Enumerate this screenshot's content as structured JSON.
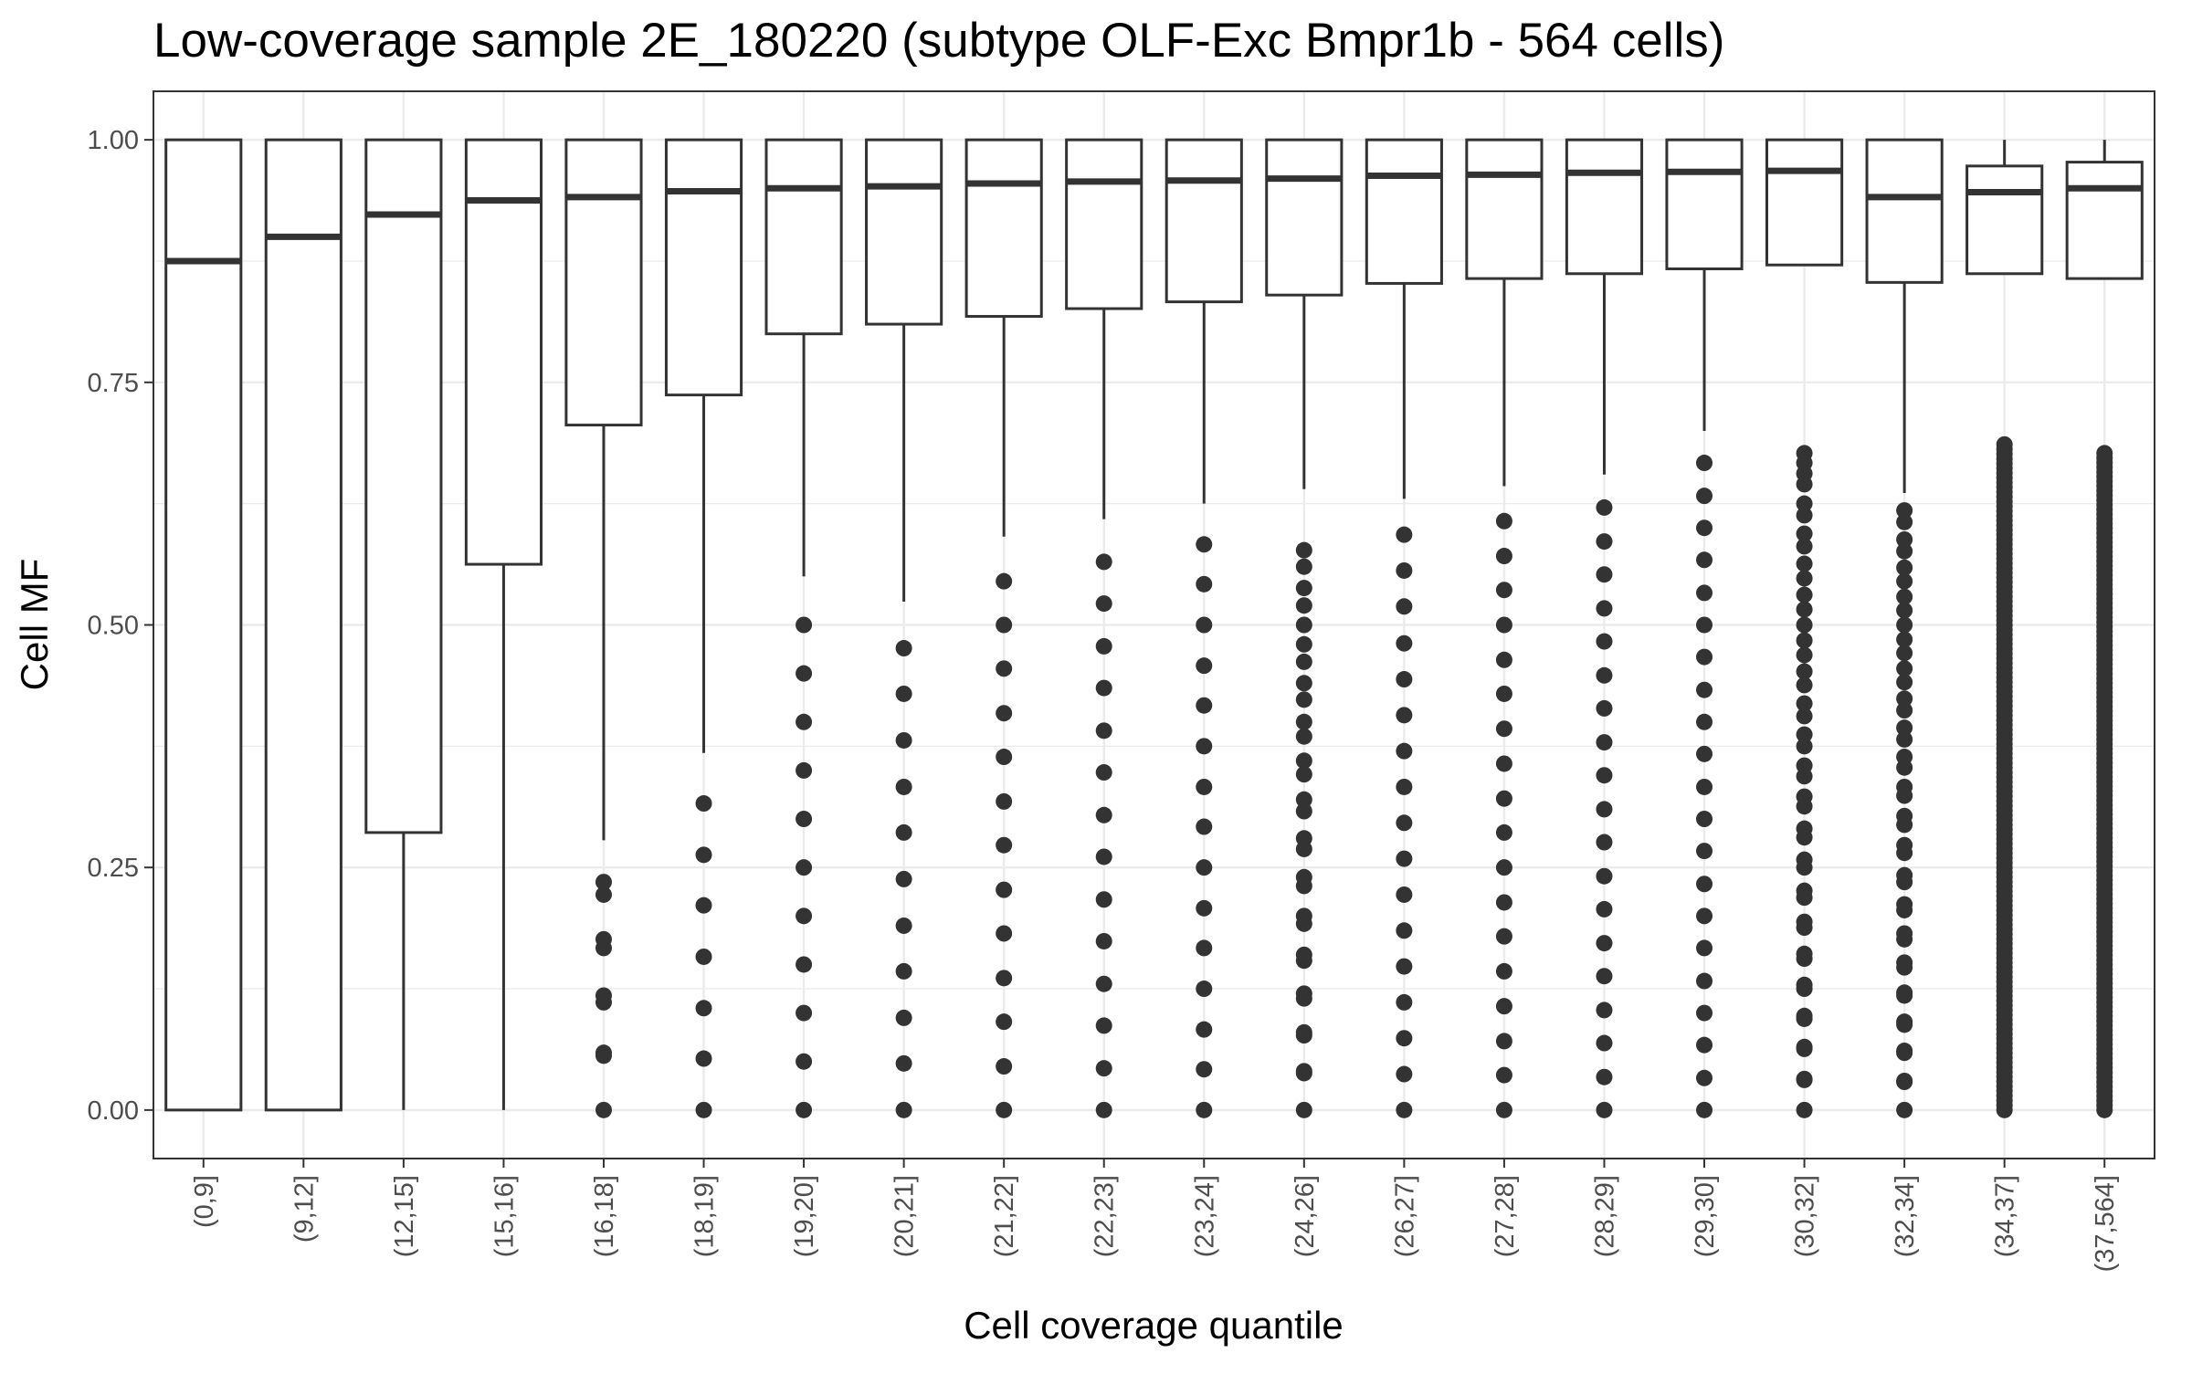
{
  "chart_data": {
    "type": "boxplot",
    "title": "Low-coverage sample 2E_180220 (subtype OLF-Exc Bmpr1b - 564 cells)",
    "xlabel": "Cell coverage quantile",
    "ylabel": "Cell MF",
    "ylim": [
      -0.05,
      1.05
    ],
    "yticks": [
      0.0,
      0.25,
      0.5,
      0.75,
      1.0
    ],
    "ytick_labels": [
      "0.00",
      "0.25",
      "0.50",
      "0.75",
      "1.00"
    ],
    "grid": true,
    "categories": [
      "(0,9]",
      "(9,12]",
      "(12,15]",
      "(15,16]",
      "(16,18]",
      "(18,19]",
      "(19,20]",
      "(20,21]",
      "(21,22]",
      "(22,23]",
      "(23,24]",
      "(24,26]",
      "(26,27]",
      "(27,28]",
      "(28,29]",
      "(29,30]",
      "(30,32]",
      "(32,34]",
      "(34,37]",
      "(37,564]"
    ],
    "boxes": [
      {
        "whisker_low": 0.0,
        "q1": 0.0,
        "median": 0.875,
        "q3": 1.0,
        "whisker_high": 1.0,
        "outliers": []
      },
      {
        "whisker_low": 0.0,
        "q1": 0.0,
        "median": 0.9,
        "q3": 1.0,
        "whisker_high": 1.0,
        "outliers": []
      },
      {
        "whisker_low": 0.0,
        "q1": 0.286,
        "median": 0.923,
        "q3": 1.0,
        "whisker_high": 1.0,
        "outliers": []
      },
      {
        "whisker_low": 0.0,
        "q1": 0.5625,
        "median": 0.9375,
        "q3": 1.0,
        "whisker_high": 1.0,
        "outliers": []
      },
      {
        "whisker_low": 0.278,
        "q1": 0.706,
        "median": 0.941,
        "q3": 1.0,
        "whisker_high": 1.0,
        "outliers": [
          0.235,
          0.222,
          0.176,
          0.167,
          0.118,
          0.111,
          0.059,
          0.056,
          0.0
        ]
      },
      {
        "whisker_low": 0.368,
        "q1": 0.737,
        "median": 0.947,
        "q3": 1.0,
        "whisker_high": 1.0,
        "outliers": [
          0.316,
          0.263,
          0.211,
          0.158,
          0.105,
          0.053,
          0.0
        ]
      },
      {
        "whisker_low": 0.55,
        "q1": 0.8,
        "median": 0.95,
        "q3": 1.0,
        "whisker_high": 1.0,
        "outliers": [
          0.5,
          0.45,
          0.4,
          0.35,
          0.3,
          0.25,
          0.2,
          0.15,
          0.1,
          0.05,
          0.0
        ]
      },
      {
        "whisker_low": 0.524,
        "q1": 0.81,
        "median": 0.952,
        "q3": 1.0,
        "whisker_high": 1.0,
        "outliers": [
          0.476,
          0.429,
          0.381,
          0.333,
          0.286,
          0.238,
          0.19,
          0.143,
          0.095,
          0.048,
          0.0
        ]
      },
      {
        "whisker_low": 0.591,
        "q1": 0.818,
        "median": 0.955,
        "q3": 1.0,
        "whisker_high": 1.0,
        "outliers": [
          0.545,
          0.5,
          0.455,
          0.409,
          0.364,
          0.318,
          0.273,
          0.227,
          0.182,
          0.136,
          0.091,
          0.045,
          0.0
        ]
      },
      {
        "whisker_low": 0.609,
        "q1": 0.826,
        "median": 0.957,
        "q3": 1.0,
        "whisker_high": 1.0,
        "outliers": [
          0.565,
          0.522,
          0.478,
          0.435,
          0.391,
          0.348,
          0.304,
          0.261,
          0.217,
          0.174,
          0.13,
          0.087,
          0.043,
          0.0
        ]
      },
      {
        "whisker_low": 0.625,
        "q1": 0.833,
        "median": 0.958,
        "q3": 1.0,
        "whisker_high": 1.0,
        "outliers": [
          0.583,
          0.542,
          0.5,
          0.458,
          0.417,
          0.375,
          0.333,
          0.292,
          0.25,
          0.208,
          0.167,
          0.125,
          0.083,
          0.042,
          0.0
        ]
      },
      {
        "whisker_low": 0.64,
        "q1": 0.84,
        "median": 0.96,
        "q3": 1.0,
        "whisker_high": 1.0,
        "outliers": [
          0.577,
          0.56,
          0.538,
          0.52,
          0.5,
          0.48,
          0.462,
          0.44,
          0.423,
          0.4,
          0.385,
          0.36,
          0.346,
          0.32,
          0.308,
          0.28,
          0.269,
          0.24,
          0.231,
          0.2,
          0.192,
          0.16,
          0.154,
          0.12,
          0.115,
          0.08,
          0.077,
          0.04,
          0.038,
          0.0
        ]
      },
      {
        "whisker_low": 0.63,
        "q1": 0.852,
        "median": 0.963,
        "q3": 1.0,
        "whisker_high": 1.0,
        "outliers": [
          0.593,
          0.556,
          0.519,
          0.481,
          0.444,
          0.407,
          0.37,
          0.333,
          0.296,
          0.259,
          0.222,
          0.185,
          0.148,
          0.111,
          0.074,
          0.037,
          0.0
        ]
      },
      {
        "whisker_low": 0.643,
        "q1": 0.857,
        "median": 0.964,
        "q3": 1.0,
        "whisker_high": 1.0,
        "outliers": [
          0.607,
          0.571,
          0.536,
          0.5,
          0.464,
          0.429,
          0.393,
          0.357,
          0.321,
          0.286,
          0.25,
          0.214,
          0.179,
          0.143,
          0.107,
          0.071,
          0.036,
          0.0
        ]
      },
      {
        "whisker_low": 0.655,
        "q1": 0.862,
        "median": 0.966,
        "q3": 1.0,
        "whisker_high": 1.0,
        "outliers": [
          0.621,
          0.586,
          0.552,
          0.517,
          0.483,
          0.448,
          0.414,
          0.379,
          0.345,
          0.31,
          0.276,
          0.241,
          0.207,
          0.172,
          0.138,
          0.103,
          0.069,
          0.034,
          0.0
        ]
      },
      {
        "whisker_low": 0.7,
        "q1": 0.867,
        "median": 0.967,
        "q3": 1.0,
        "whisker_high": 1.0,
        "outliers": [
          0.667,
          0.633,
          0.6,
          0.567,
          0.533,
          0.5,
          0.467,
          0.433,
          0.4,
          0.367,
          0.333,
          0.3,
          0.267,
          0.233,
          0.2,
          0.167,
          0.133,
          0.1,
          0.067,
          0.033,
          0.0
        ]
      },
      {
        "whisker_low": 0.871,
        "q1": 0.871,
        "median": 0.968,
        "q3": 1.0,
        "whisker_high": 1.0,
        "outliers": [
          0.677,
          0.667,
          0.656,
          0.645,
          0.625,
          0.613,
          0.594,
          0.581,
          0.563,
          0.548,
          0.531,
          0.516,
          0.5,
          0.484,
          0.469,
          0.452,
          0.438,
          0.419,
          0.406,
          0.387,
          0.375,
          0.355,
          0.344,
          0.323,
          0.313,
          0.29,
          0.281,
          0.258,
          0.25,
          0.226,
          0.219,
          0.194,
          0.188,
          0.161,
          0.156,
          0.129,
          0.125,
          0.097,
          0.094,
          0.065,
          0.063,
          0.032,
          0.031,
          0.0
        ]
      },
      {
        "whisker_low": 0.636,
        "q1": 0.853,
        "median": 0.941,
        "q3": 1.0,
        "whisker_high": 1.0,
        "outliers": [
          0.618,
          0.606,
          0.588,
          0.576,
          0.559,
          0.545,
          0.529,
          0.515,
          0.5,
          0.485,
          0.471,
          0.455,
          0.441,
          0.424,
          0.412,
          0.394,
          0.382,
          0.364,
          0.353,
          0.333,
          0.324,
          0.303,
          0.294,
          0.273,
          0.265,
          0.242,
          0.235,
          0.212,
          0.206,
          0.182,
          0.176,
          0.152,
          0.147,
          0.121,
          0.118,
          0.091,
          0.088,
          0.061,
          0.059,
          0.03,
          0.029,
          0.0
        ]
      },
      {
        "whisker_low": 0.862,
        "q1": 0.862,
        "median": 0.946,
        "q3": 0.973,
        "whisker_high": 1.0,
        "outliers_range": [
          0.0,
          0.686
        ],
        "outliers_sample": [
          0.686,
          0.676,
          0.667,
          0.658,
          0.649,
          0.639,
          0.629,
          0.618,
          0.611,
          0.6,
          0.588,
          0.571,
          0.556,
          0.541,
          0.528,
          0.514,
          0.5,
          0.486,
          0.472,
          0.459,
          0.444,
          0.429,
          0.417,
          0.4,
          0.389,
          0.371,
          0.361,
          0.343,
          0.333,
          0.314,
          0.306,
          0.286,
          0.278,
          0.257,
          0.25,
          0.229,
          0.222,
          0.2,
          0.194,
          0.171,
          0.167,
          0.143,
          0.139,
          0.114,
          0.111,
          0.086,
          0.083,
          0.057,
          0.056,
          0.029,
          0.0
        ]
      },
      {
        "whisker_low": 0.857,
        "q1": 0.857,
        "median": 0.95,
        "q3": 0.977,
        "whisker_high": 1.0,
        "outliers_range": [
          0.0,
          0.677
        ],
        "outliers_sample": [
          0.677,
          0.663,
          0.65,
          0.636,
          0.622,
          0.609,
          0.595,
          0.581,
          0.568,
          0.554,
          0.54,
          0.527,
          0.513,
          0.5,
          0.486,
          0.473,
          0.459,
          0.446,
          0.432,
          0.419,
          0.405,
          0.392,
          0.378,
          0.365,
          0.351,
          0.338,
          0.324,
          0.311,
          0.297,
          0.284,
          0.27,
          0.257,
          0.243,
          0.23,
          0.216,
          0.203,
          0.189,
          0.176,
          0.162,
          0.149,
          0.135,
          0.122,
          0.108,
          0.095,
          0.081,
          0.068,
          0.054,
          0.041,
          0.027,
          0.014,
          0.0
        ]
      }
    ],
    "colors": {
      "box_stroke": "#333333",
      "box_fill": "#ffffff",
      "outlier": "#333333",
      "grid": "#ebebeb",
      "panel_border": "#333333",
      "tick_text": "#4d4d4d",
      "text": "#000000"
    }
  }
}
